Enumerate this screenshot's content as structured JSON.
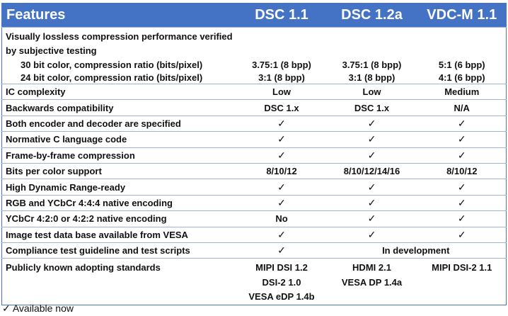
{
  "header": {
    "features": "Features",
    "cols": [
      "DSC 1.1",
      "DSC 1.2a",
      "VDC-M 1.1"
    ]
  },
  "compression": {
    "title": "Visually lossless compression performance verified by subjective testing",
    "rows": [
      {
        "label": "30 bit color, compression ratio (bits/pixel)",
        "values": [
          "3.75:1 (8 bpp)",
          "3.75:1 (8 bpp)",
          "5:1 (6 bpp)"
        ]
      },
      {
        "label": "24 bit color, compression ratio (bits/pixel)",
        "values": [
          "3:1 (8 bpp)",
          "3:1 (8 bpp)",
          "4:1 (6 bpp)"
        ]
      }
    ]
  },
  "rows": [
    {
      "label": "IC complexity",
      "values": [
        "Low",
        "Low",
        "Medium"
      ]
    },
    {
      "label": "Backwards compatibility",
      "values": [
        "DSC 1.x",
        "DSC 1.x",
        "N/A"
      ]
    },
    {
      "label": "Both encoder and decoder are specified",
      "values": [
        "✓",
        "✓",
        "✓"
      ]
    },
    {
      "label": "Normative C language code",
      "values": [
        "✓",
        "✓",
        "✓"
      ]
    },
    {
      "label": "Frame-by-frame compression",
      "values": [
        "✓",
        "✓",
        "✓"
      ]
    },
    {
      "label": "Bits per color support",
      "values": [
        "8/10/12",
        "8/10/12/14/16",
        "8/10/12"
      ]
    },
    {
      "label": "High Dynamic Range-ready",
      "values": [
        "✓",
        "✓",
        "✓"
      ]
    },
    {
      "label": "RGB and YCbCr 4:4:4 native encoding",
      "values": [
        "✓",
        "✓",
        "✓"
      ]
    },
    {
      "label": "YCbCr 4:2:0 or 4:2:2 native encoding",
      "values": [
        "No",
        "✓",
        "✓"
      ]
    },
    {
      "label": "Image test data base available from VESA",
      "values": [
        "✓",
        "✓",
        "✓"
      ]
    }
  ],
  "compliance": {
    "label": "Compliance test guideline and test scripts",
    "dsc11": "✓",
    "others": "In development"
  },
  "adopting": {
    "label": "Publicly known adopting standards",
    "dsc11": [
      "MIPI DSI 1.2",
      "DSI-2 1.0",
      "VESA eDP 1.4b"
    ],
    "dsc12a": [
      "HDMI 2.1",
      "VESA DP 1.4a"
    ],
    "vdcm": [
      "MIPI DSI-2 1.1"
    ]
  },
  "footnote": "✓ Available now"
}
